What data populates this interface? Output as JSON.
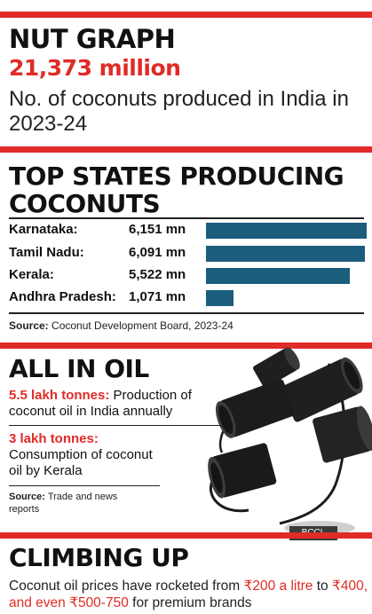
{
  "nut_graph": {
    "title": "NUT GRAPH",
    "value": "21,373 million",
    "description": "No. of coconuts produced in India in 2023-24"
  },
  "top_states": {
    "title": "TOP STATES PRODUCING COCONUTS",
    "rows": [
      {
        "state": "Karnataka:",
        "label": "6,151 mn"
      },
      {
        "state": "Tamil Nadu:",
        "label": "6,091 mn"
      },
      {
        "state": "Kerala:",
        "label": "5,522 mn"
      },
      {
        "state": "Andhra Pradesh:",
        "label": "1,071 mn"
      }
    ],
    "source_label": "Source:",
    "source_text": "Coconut Development Board, 2023-24"
  },
  "chart_data": {
    "type": "bar",
    "orientation": "horizontal",
    "title": "TOP STATES PRODUCING COCONUTS",
    "categories": [
      "Karnataka",
      "Tamil Nadu",
      "Kerala",
      "Andhra Pradesh"
    ],
    "values": [
      6151,
      6091,
      5522,
      1071
    ],
    "unit": "mn",
    "xlim": [
      0,
      6400
    ],
    "grid": false,
    "legend": "none",
    "bar_color": "#1c5d7e"
  },
  "all_in_oil": {
    "title": "ALL IN OIL",
    "fact1_highlight": "5.5 lakh tonnes:",
    "fact1_text": " Production of coconut oil in India annually",
    "fact2_highlight": "3 lakh tonnes:",
    "fact2_text": "Consumption of coconut oil by Kerala",
    "source_label": "Source:",
    "source_text": " Trade and news reports",
    "image_credit": "BCCL"
  },
  "climbing_up": {
    "title": "CLIMBING UP",
    "desc_part1": "Coconut oil prices have rocketed from ",
    "highlight1": "₹200 a litre",
    "desc_part2": " to ",
    "highlight2": "₹400, and even ₹500-750",
    "desc_part3": " for premium brands"
  },
  "colors": {
    "accent_red": "#e02b27",
    "bar_blue": "#1c5d7e"
  }
}
